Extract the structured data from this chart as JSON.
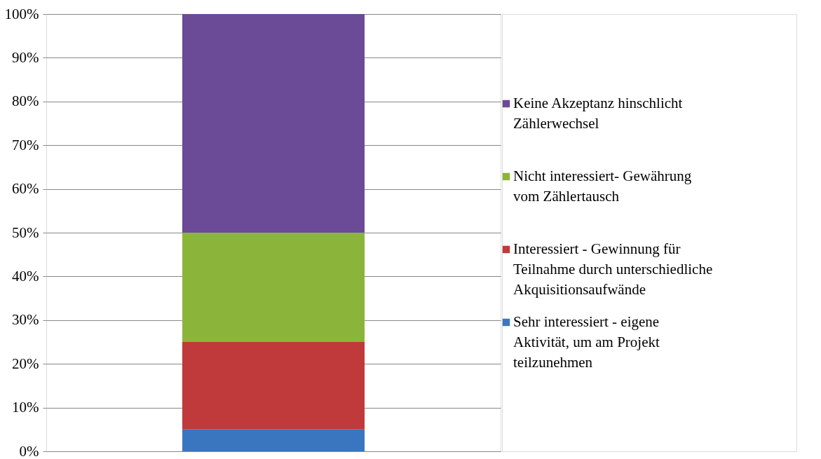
{
  "chart_data": {
    "type": "bar",
    "stacked": true,
    "categories": [
      null
    ],
    "series": [
      {
        "name": "Sehr interessiert - eigene Aktivität, um am Projekt teilzunehmen",
        "color": "#3a75c0",
        "values": [
          5
        ]
      },
      {
        "name": "Interessiert - Gewinnung für Teilnahme durch unterschiedliche Akquisitionsaufwände",
        "color": "#c0393b",
        "values": [
          20
        ]
      },
      {
        "name": "Nicht interessiert- Gewährung vom Zählertausch",
        "color": "#8bb53a",
        "values": [
          25
        ]
      },
      {
        "name": "Keine Akzeptanz hinschlicht Zählerwechsel",
        "color": "#6b4a97",
        "values": [
          50
        ]
      }
    ],
    "ylim": [
      0,
      100
    ],
    "yticks": [
      {
        "value": 0,
        "label": "0%"
      },
      {
        "value": 10,
        "label": "10%"
      },
      {
        "value": 20,
        "label": "20%"
      },
      {
        "value": 30,
        "label": "30%"
      },
      {
        "value": 40,
        "label": "40%"
      },
      {
        "value": 50,
        "label": "50%"
      },
      {
        "value": 60,
        "label": "60%"
      },
      {
        "value": 70,
        "label": "70%"
      },
      {
        "value": 80,
        "label": "80%"
      },
      {
        "value": 90,
        "label": "90%"
      },
      {
        "value": 100,
        "label": "100%"
      }
    ],
    "grid": "y",
    "legend": "right"
  }
}
